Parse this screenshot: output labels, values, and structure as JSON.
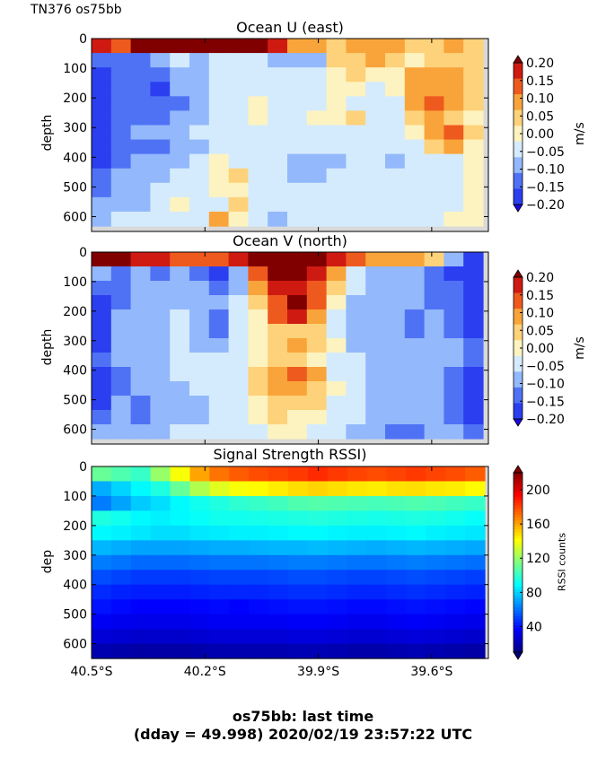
{
  "figure": {
    "corner_title": "TN376 os75bb",
    "footer_line1": "os75bb: last time",
    "footer_line2": "(dday = 49.998) 2020/02/19 23:57:22 UTC"
  },
  "colors": {
    "u_v_levels": [
      "#1a06e0",
      "#2b3ef0",
      "#4f72f5",
      "#93b8fb",
      "#d4ebfd",
      "#fdf3c0",
      "#fed27a",
      "#f9a43a",
      "#ee5a1e",
      "#cf1a12",
      "#800000"
    ],
    "rssi_ramp": [
      "#00007f",
      "#0000ff",
      "#007fff",
      "#00ffff",
      "#7fff7f",
      "#ffff00",
      "#ff7f00",
      "#ff0000",
      "#7f0000"
    ],
    "missing": "#d9d9d9"
  },
  "chart_data": [
    {
      "type": "heatmap",
      "title": "Ocean U (east)",
      "ylabel": "depth",
      "colorbar_label": "m/s",
      "colorbar_ticks": [
        "0.20",
        "0.15",
        "0.10",
        "0.05",
        "0.00",
        "−0.05",
        "−0.10",
        "−0.15",
        "−0.20"
      ],
      "colorbar_range": [
        -0.2,
        0.2
      ],
      "x_ticks": [],
      "xlim": [
        40.5,
        39.45
      ],
      "y_ticks": [
        "0",
        "100",
        "200",
        "300",
        "400",
        "500",
        "600"
      ],
      "ylim": [
        650,
        0
      ],
      "cells": [
        [
          0.18,
          0.12,
          0.2,
          0.2,
          0.2,
          0.2,
          0.2,
          0.2,
          0.2,
          0.15,
          0.08,
          0.05,
          0.04,
          0.05,
          0.05,
          0.05,
          0.04,
          0.03,
          0.05,
          0.03
        ],
        [
          -0.12,
          -0.15,
          -0.12,
          -0.1,
          -0.05,
          -0.06,
          -0.03,
          -0.04,
          -0.05,
          -0.06,
          -0.1,
          -0.08,
          0.02,
          0.03,
          0.05,
          0.03,
          0.0,
          0.02,
          0.04,
          0.02
        ],
        [
          -0.16,
          -0.14,
          -0.12,
          -0.12,
          -0.08,
          -0.06,
          -0.05,
          -0.04,
          -0.03,
          -0.04,
          -0.05,
          -0.03,
          0.01,
          0.02,
          0.01,
          0.0,
          0.07,
          0.08,
          0.06,
          0.03
        ],
        [
          -0.17,
          -0.15,
          -0.12,
          -0.16,
          -0.1,
          -0.06,
          -0.05,
          -0.04,
          -0.03,
          -0.03,
          -0.02,
          -0.02,
          -0.01,
          0.0,
          -0.02,
          -0.01,
          0.06,
          0.08,
          0.07,
          0.02
        ],
        [
          -0.18,
          -0.14,
          -0.12,
          -0.14,
          -0.12,
          -0.07,
          -0.05,
          -0.03,
          -0.01,
          -0.02,
          -0.03,
          -0.02,
          -0.01,
          -0.02,
          -0.03,
          -0.02,
          0.06,
          0.1,
          0.07,
          0.02
        ],
        [
          -0.2,
          -0.14,
          -0.12,
          -0.12,
          -0.09,
          -0.06,
          -0.04,
          -0.02,
          -0.01,
          -0.02,
          -0.02,
          -0.01,
          0.01,
          0.02,
          -0.02,
          -0.03,
          0.02,
          0.06,
          0.04,
          0.01
        ],
        [
          -0.19,
          -0.13,
          -0.1,
          -0.1,
          -0.07,
          -0.05,
          -0.04,
          -0.03,
          -0.02,
          -0.03,
          -0.03,
          -0.03,
          -0.02,
          -0.02,
          -0.03,
          -0.04,
          -0.01,
          0.05,
          0.1,
          0.02
        ],
        [
          -0.19,
          -0.14,
          -0.11,
          -0.11,
          -0.09,
          -0.06,
          -0.05,
          -0.04,
          -0.04,
          -0.03,
          -0.04,
          -0.04,
          -0.03,
          -0.03,
          -0.04,
          -0.05,
          -0.03,
          0.02,
          0.05,
          0.01
        ],
        [
          -0.16,
          -0.11,
          -0.07,
          -0.08,
          -0.06,
          -0.04,
          0.01,
          -0.03,
          -0.04,
          -0.03,
          -0.06,
          -0.07,
          -0.06,
          -0.05,
          -0.05,
          -0.06,
          -0.04,
          -0.02,
          -0.03,
          -0.01
        ],
        [
          -0.12,
          -0.1,
          -0.08,
          -0.06,
          -0.05,
          -0.04,
          0.01,
          0.02,
          -0.02,
          -0.04,
          -0.07,
          -0.06,
          -0.05,
          -0.04,
          -0.04,
          -0.05,
          -0.04,
          -0.03,
          -0.02,
          -0.01
        ],
        [
          -0.12,
          -0.08,
          -0.06,
          -0.05,
          -0.04,
          -0.02,
          0.0,
          0.01,
          -0.03,
          -0.04,
          -0.03,
          -0.02,
          -0.03,
          -0.03,
          -0.02,
          -0.03,
          -0.02,
          -0.02,
          -0.02,
          -0.01
        ],
        [
          -0.1,
          -0.08,
          -0.06,
          -0.04,
          0.01,
          -0.03,
          -0.02,
          0.02,
          -0.02,
          -0.04,
          -0.05,
          -0.02,
          -0.02,
          -0.03,
          -0.05,
          -0.05,
          -0.03,
          -0.02,
          -0.03,
          -0.01
        ],
        [
          -0.06,
          -0.05,
          -0.04,
          -0.03,
          -0.03,
          -0.02,
          0.06,
          0.01,
          -0.05,
          -0.07,
          -0.03,
          -0.02,
          -0.02,
          -0.03,
          -0.05,
          -0.04,
          -0.03,
          -0.02,
          0.01,
          -0.01
        ]
      ]
    },
    {
      "type": "heatmap",
      "title": "Ocean V (north)",
      "ylabel": "depth",
      "colorbar_label": "m/s",
      "colorbar_ticks": [
        "0.20",
        "0.15",
        "0.10",
        "0.05",
        "0.00",
        "−0.05",
        "−0.10",
        "−0.15",
        "−0.20"
      ],
      "colorbar_range": [
        -0.2,
        0.2
      ],
      "x_ticks": [],
      "xlim": [
        40.5,
        39.45
      ],
      "y_ticks": [
        "0",
        "100",
        "200",
        "300",
        "400",
        "500",
        "600"
      ],
      "ylim": [
        650,
        0
      ],
      "cells": [
        [
          0.2,
          0.2,
          0.18,
          0.15,
          0.12,
          0.1,
          0.12,
          0.18,
          0.22,
          0.22,
          0.22,
          0.2,
          0.15,
          0.1,
          0.08,
          0.06,
          0.05,
          0.03,
          -0.1,
          -0.16
        ],
        [
          -0.1,
          -0.12,
          -0.1,
          -0.12,
          -0.1,
          -0.14,
          -0.18,
          -0.08,
          0.12,
          0.22,
          0.22,
          0.18,
          0.05,
          -0.03,
          -0.06,
          -0.08,
          -0.1,
          -0.12,
          -0.16,
          -0.18
        ],
        [
          -0.14,
          -0.12,
          -0.1,
          -0.1,
          -0.08,
          -0.1,
          -0.12,
          -0.06,
          0.06,
          0.18,
          0.17,
          0.1,
          0.02,
          -0.04,
          -0.06,
          -0.08,
          -0.1,
          -0.12,
          -0.14,
          -0.18
        ],
        [
          -0.16,
          -0.12,
          -0.08,
          -0.08,
          -0.06,
          -0.1,
          -0.08,
          -0.04,
          0.02,
          0.13,
          0.22,
          0.12,
          0.0,
          -0.06,
          -0.06,
          -0.08,
          -0.1,
          -0.12,
          -0.15,
          -0.18
        ],
        [
          -0.16,
          -0.1,
          -0.08,
          -0.06,
          -0.05,
          -0.1,
          -0.12,
          -0.03,
          0.01,
          0.1,
          0.15,
          0.08,
          -0.02,
          -0.06,
          -0.06,
          -0.08,
          -0.12,
          -0.1,
          -0.12,
          -0.16
        ],
        [
          -0.18,
          -0.1,
          -0.06,
          -0.06,
          -0.04,
          -0.08,
          -0.15,
          -0.05,
          0.01,
          0.03,
          0.04,
          0.03,
          -0.02,
          -0.06,
          -0.08,
          -0.08,
          -0.12,
          -0.1,
          -0.12,
          -0.17
        ],
        [
          -0.16,
          -0.1,
          -0.08,
          -0.06,
          -0.05,
          -0.06,
          -0.08,
          -0.05,
          0.01,
          0.04,
          0.08,
          0.04,
          -0.01,
          -0.06,
          -0.08,
          -0.1,
          -0.1,
          -0.08,
          -0.1,
          -0.15
        ],
        [
          -0.14,
          -0.1,
          -0.08,
          -0.06,
          -0.04,
          -0.05,
          -0.05,
          -0.05,
          0.01,
          0.02,
          0.03,
          0.01,
          -0.03,
          -0.05,
          -0.08,
          -0.08,
          -0.08,
          -0.06,
          -0.1,
          -0.14
        ],
        [
          -0.17,
          -0.12,
          -0.1,
          -0.08,
          -0.05,
          -0.04,
          -0.04,
          -0.03,
          0.02,
          0.06,
          0.1,
          0.05,
          -0.02,
          -0.05,
          -0.06,
          -0.06,
          -0.08,
          -0.06,
          -0.12,
          -0.16
        ],
        [
          -0.18,
          -0.11,
          -0.1,
          -0.08,
          -0.06,
          -0.04,
          -0.03,
          -0.02,
          0.03,
          0.08,
          0.07,
          0.03,
          -0.01,
          -0.05,
          -0.06,
          -0.07,
          -0.08,
          -0.08,
          -0.12,
          -0.17
        ],
        [
          -0.16,
          -0.1,
          -0.12,
          -0.1,
          -0.08,
          -0.06,
          -0.04,
          -0.02,
          0.01,
          0.03,
          0.04,
          0.02,
          -0.02,
          -0.04,
          -0.06,
          -0.08,
          -0.1,
          -0.1,
          -0.14,
          -0.2
        ],
        [
          -0.14,
          -0.08,
          -0.11,
          -0.1,
          -0.08,
          -0.07,
          -0.05,
          -0.03,
          0.01,
          0.02,
          0.01,
          0.0,
          -0.03,
          -0.05,
          -0.06,
          -0.08,
          -0.08,
          -0.1,
          -0.12,
          -0.18
        ],
        [
          -0.1,
          -0.08,
          -0.06,
          -0.06,
          -0.05,
          -0.05,
          -0.04,
          -0.03,
          -0.02,
          0.0,
          -0.01,
          -0.02,
          -0.04,
          -0.06,
          -0.08,
          -0.12,
          -0.12,
          -0.1,
          -0.1,
          -0.12
        ]
      ]
    },
    {
      "type": "heatmap",
      "title": "Signal Strength RSSI)",
      "ylabel": "dep",
      "colorbar_label": "RSSI counts",
      "colorbar_ticks": [
        "200",
        "160",
        "120",
        "80",
        "40"
      ],
      "colorbar_range": [
        10,
        220
      ],
      "x_ticks": [
        "40.5°S",
        "40.2°S",
        "39.9°S",
        "39.6°S"
      ],
      "xlim": [
        40.5,
        39.45
      ],
      "y_ticks": [
        "0",
        "100",
        "200",
        "300",
        "400",
        "500",
        "600"
      ],
      "ylim": [
        650,
        0
      ],
      "cells": [
        [
          110,
          105,
          100,
          120,
          140,
          160,
          170,
          175,
          178,
          180,
          182,
          185,
          182,
          180,
          178,
          180,
          182,
          180,
          178,
          175
        ],
        [
          72,
          80,
          88,
          95,
          110,
          125,
          135,
          140,
          142,
          145,
          148,
          150,
          148,
          146,
          145,
          147,
          148,
          146,
          145,
          142
        ],
        [
          62,
          70,
          78,
          82,
          88,
          92,
          95,
          98,
          100,
          102,
          105,
          106,
          105,
          104,
          103,
          104,
          105,
          104,
          102,
          100
        ],
        [
          95,
          92,
          88,
          86,
          88,
          90,
          92,
          92,
          93,
          94,
          95,
          96,
          95,
          94,
          93,
          94,
          95,
          94,
          92,
          90
        ],
        [
          88,
          86,
          84,
          82,
          82,
          84,
          85,
          86,
          86,
          87,
          88,
          88,
          87,
          86,
          86,
          87,
          88,
          86,
          85,
          84
        ],
        [
          74,
          72,
          70,
          70,
          70,
          71,
          72,
          72,
          73,
          74,
          74,
          75,
          74,
          73,
          72,
          73,
          74,
          73,
          72,
          71
        ],
        [
          62,
          60,
          58,
          58,
          58,
          59,
          60,
          60,
          60,
          61,
          62,
          62,
          61,
          60,
          60,
          61,
          62,
          61,
          60,
          59
        ],
        [
          52,
          50,
          48,
          48,
          48,
          49,
          50,
          50,
          50,
          51,
          52,
          52,
          51,
          50,
          50,
          51,
          52,
          51,
          50,
          49
        ],
        [
          45,
          43,
          42,
          42,
          42,
          43,
          44,
          44,
          44,
          45,
          46,
          46,
          45,
          44,
          44,
          45,
          46,
          45,
          44,
          43
        ],
        [
          40,
          38,
          36,
          36,
          36,
          37,
          38,
          36,
          38,
          39,
          40,
          40,
          39,
          38,
          38,
          39,
          40,
          39,
          38,
          37
        ],
        [
          34,
          33,
          32,
          32,
          32,
          33,
          34,
          34,
          34,
          34,
          35,
          35,
          34,
          33,
          33,
          34,
          35,
          34,
          33,
          32
        ],
        [
          28,
          27,
          26,
          26,
          26,
          27,
          28,
          28,
          28,
          28,
          29,
          29,
          28,
          27,
          27,
          28,
          29,
          28,
          27,
          26
        ],
        [
          20,
          19,
          18,
          18,
          18,
          19,
          20,
          20,
          20,
          20,
          21,
          21,
          20,
          19,
          19,
          20,
          21,
          20,
          19,
          18
        ]
      ]
    }
  ]
}
